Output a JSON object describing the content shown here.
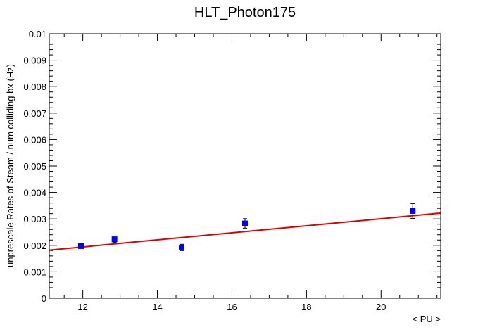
{
  "chart_data": {
    "type": "scatter",
    "title": "HLT_Photon175",
    "xlabel": "< PU >",
    "ylabel": "unprescale Rates of Steam / num colliding bx (Hz)",
    "xlim": [
      11.1,
      21.6
    ],
    "ylim": [
      0,
      0.01
    ],
    "x_ticks": [
      "12",
      "14",
      "16",
      "18",
      "20"
    ],
    "y_ticks": [
      "0",
      "0.001",
      "0.002",
      "0.003",
      "0.004",
      "0.005",
      "0.006",
      "0.007",
      "0.008",
      "0.009",
      "0.01"
    ],
    "grid": false,
    "series": [
      {
        "marker": "square",
        "color": "#0000ff",
        "points": [
          {
            "x": 11.95,
            "y": 0.00197,
            "err": 7e-05
          },
          {
            "x": 12.85,
            "y": 0.00223,
            "err": 0.00012
          },
          {
            "x": 14.65,
            "y": 0.00192,
            "err": 0.00012
          },
          {
            "x": 16.35,
            "y": 0.00283,
            "err": 0.00018
          },
          {
            "x": 20.85,
            "y": 0.0033,
            "err": 0.00028
          }
        ]
      }
    ],
    "fit": {
      "type": "linear",
      "color": "#e00000",
      "x": [
        11.1,
        21.6
      ],
      "y": [
        0.00182,
        0.00322
      ]
    }
  }
}
